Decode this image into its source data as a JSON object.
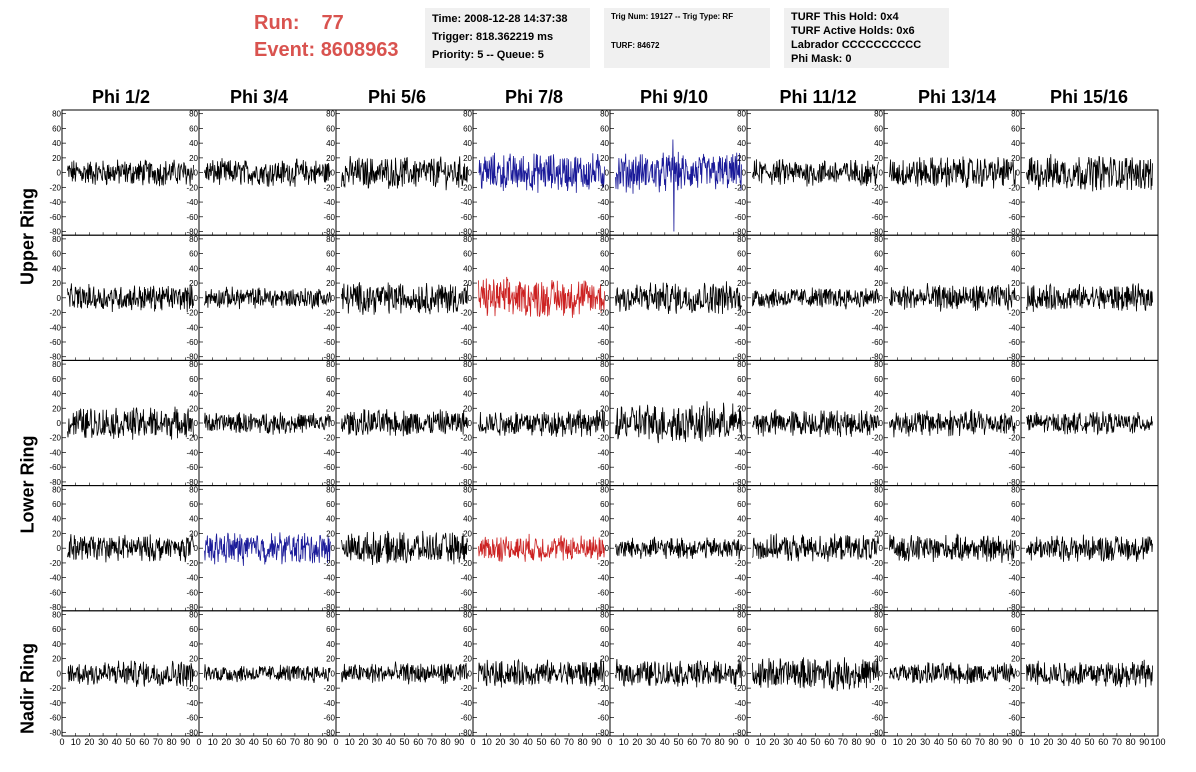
{
  "header": {
    "run_label": "Run:",
    "run_value": "77",
    "event_label": "Event:",
    "event_value": "8608963"
  },
  "info_box_1": {
    "time": "Time: 2008-12-28 14:37:38",
    "trigger": "Trigger: 818.362219 ms",
    "priority": "Priority: 5 -- Queue: 5"
  },
  "info_box_2": {
    "trig": "Trig Num: 19127 -- Trig Type: RF",
    "turf": "TURF: 84672"
  },
  "info_box_3": {
    "hold": "TURF This Hold: 0x4",
    "active": "TURF Active Holds: 0x6",
    "labrador": "Labrador CCCCCCCCCC",
    "mask": "Phi Mask: 0"
  },
  "columns": [
    "Phi 1/2",
    "Phi 3/4",
    "Phi 5/6",
    "Phi 7/8",
    "Phi 9/10",
    "Phi 11/12",
    "Phi 13/14",
    "Phi 15/16"
  ],
  "ring_labels": {
    "upper": "Upper Ring",
    "lower": "Lower Ring",
    "nadir": "Nadir Ring"
  },
  "colors": {
    "default_trace": "#000000",
    "blue_trace": "#1a1a99",
    "red_trace": "#cc2222",
    "header_red": "#d9534f"
  },
  "chart_data": {
    "type": "line",
    "description_units": "waveform amplitude vs sample",
    "xlim": [
      0,
      100
    ],
    "ylim": [
      -85,
      85
    ],
    "y_ticks": [
      80,
      60,
      40,
      20,
      0,
      -20,
      -40,
      -60,
      -80
    ],
    "x_tick_labels_per_panel": [
      "0",
      "10",
      "20",
      "30",
      "40",
      "50",
      "60",
      "70",
      "80",
      "90"
    ],
    "last_x_tick_label": "100",
    "rows": 5,
    "cols": 8,
    "trace_colors": [
      [
        "black",
        "black",
        "black",
        "blue",
        "blue",
        "black",
        "black",
        "black"
      ],
      [
        "black",
        "black",
        "black",
        "red",
        "black",
        "black",
        "black",
        "black"
      ],
      [
        "black",
        "black",
        "black",
        "black",
        "black",
        "black",
        "black",
        "black"
      ],
      [
        "black",
        "blue",
        "black",
        "red",
        "black",
        "black",
        "black",
        "black"
      ],
      [
        "black",
        "black",
        "black",
        "black",
        "black",
        "black",
        "black",
        "black"
      ]
    ],
    "trace_amplitudes": [
      [
        15,
        15,
        18,
        22,
        22,
        15,
        18,
        20
      ],
      [
        15,
        12,
        18,
        22,
        18,
        12,
        15,
        15
      ],
      [
        18,
        12,
        15,
        15,
        22,
        15,
        15,
        12
      ],
      [
        15,
        18,
        18,
        15,
        12,
        15,
        15,
        15
      ],
      [
        15,
        10,
        12,
        15,
        15,
        18,
        12,
        15
      ]
    ]
  }
}
